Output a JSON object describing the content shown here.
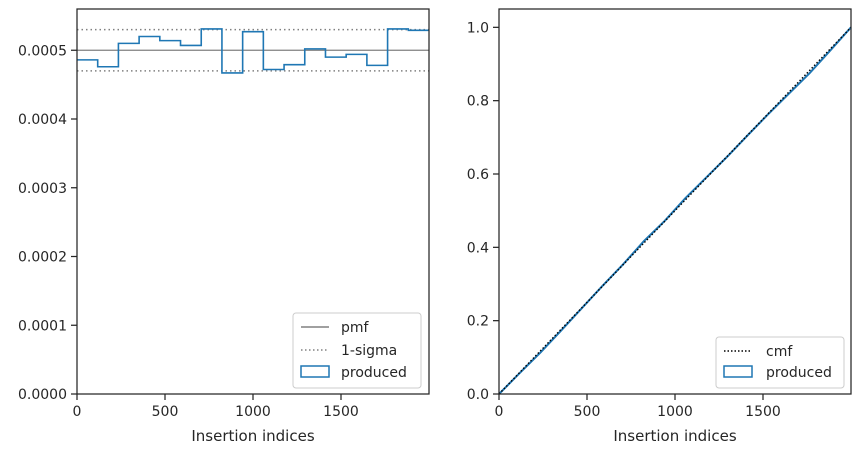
{
  "chart_data": [
    {
      "type": "histogram-step",
      "xlabel": "Insertion indices",
      "ylabel": "",
      "xlim": [
        0,
        2000
      ],
      "ylim": [
        0,
        0.00056
      ],
      "xticks": [
        0,
        500,
        1000,
        1500
      ],
      "xtick_labels": [
        "0",
        "500",
        "1000",
        "1500"
      ],
      "yticks": [
        0,
        0.0001,
        0.0002,
        0.0003,
        0.0004,
        0.0005
      ],
      "ytick_labels": [
        "0.0000",
        "0.0001",
        "0.0002",
        "0.0003",
        "0.0004",
        "0.0005"
      ],
      "pmf": 0.0005,
      "sigma_upper": 0.00053,
      "sigma_lower": 0.00047,
      "bin_edges": [
        0,
        117.6,
        235.3,
        352.9,
        470.6,
        588.2,
        705.9,
        823.5,
        941.2,
        1058.8,
        1176.5,
        1294.1,
        1411.8,
        1529.4,
        1647.1,
        1764.7,
        1882.4,
        2000
      ],
      "bin_values": [
        0.000486,
        0.000476,
        0.00051,
        0.00052,
        0.000514,
        0.000507,
        0.000531,
        0.000467,
        0.000527,
        0.000472,
        0.000479,
        0.000502,
        0.00049,
        0.000494,
        0.000478,
        0.000531,
        0.000529
      ],
      "legend": {
        "position": "lower right",
        "entries": [
          {
            "label": "pmf",
            "style": "solid-gray"
          },
          {
            "label": "1-sigma",
            "style": "dotted-gray"
          },
          {
            "label": "produced",
            "style": "blue-box"
          }
        ]
      },
      "colors": {
        "produced": "#1f77b4",
        "pmf": "#808080",
        "sigma": "#808080"
      }
    },
    {
      "type": "line",
      "xlabel": "Insertion indices",
      "ylabel": "",
      "xlim": [
        0,
        2000
      ],
      "ylim": [
        0,
        1.05
      ],
      "xticks": [
        0,
        500,
        1000,
        1500
      ],
      "xtick_labels": [
        "0",
        "500",
        "1000",
        "1500"
      ],
      "yticks": [
        0,
        0.2,
        0.4,
        0.6,
        0.8,
        1.0
      ],
      "ytick_labels": [
        "0.0",
        "0.2",
        "0.4",
        "0.6",
        "0.8",
        "1.0"
      ],
      "cmf": {
        "x": [
          0,
          2000
        ],
        "y": [
          0,
          1.0
        ]
      },
      "produced": {
        "x": [
          0,
          117.6,
          235.3,
          352.9,
          470.6,
          588.2,
          705.9,
          823.5,
          941.2,
          1058.8,
          1176.5,
          1294.1,
          1411.8,
          1529.4,
          1647.1,
          1764.7,
          1882.4,
          2000
        ],
        "y": [
          0,
          0.057,
          0.113,
          0.173,
          0.234,
          0.295,
          0.354,
          0.417,
          0.472,
          0.534,
          0.59,
          0.646,
          0.705,
          0.763,
          0.819,
          0.875,
          0.937,
          1.0
        ]
      },
      "legend": {
        "position": "lower right",
        "entries": [
          {
            "label": "cmf",
            "style": "dotted-black"
          },
          {
            "label": "produced",
            "style": "blue-box"
          }
        ]
      },
      "colors": {
        "produced": "#1f77b4",
        "cmf": "#000000"
      }
    }
  ]
}
